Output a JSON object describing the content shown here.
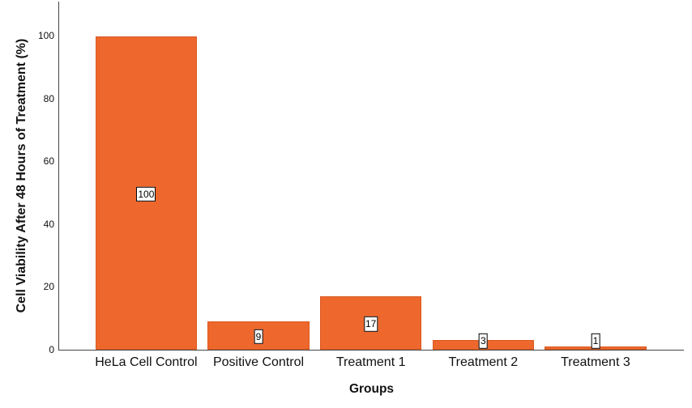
{
  "chart_data": {
    "type": "bar",
    "title": "",
    "categories": [
      "HeLa Cell Control",
      "Positive Control",
      "Treatment 1",
      "Treatment 2",
      "Treatment 3"
    ],
    "values": [
      100,
      9,
      17,
      3,
      1
    ],
    "bar_labels": [
      "100",
      "9",
      "17",
      "3",
      "1"
    ],
    "xlabel": "Groups",
    "ylabel": "Cell Viability After 48 Hours of Treatment (%)",
    "yticks": [
      0,
      20,
      40,
      60,
      80,
      100
    ],
    "ylim": [
      0,
      111
    ],
    "grid": false,
    "legend_position": "none",
    "bar_color": "#ee672c",
    "bar_border_color": "#da5a20",
    "axis_color": "#464646",
    "background_color": "#ffffff",
    "label_box_background": "#ffffff",
    "label_box_border_color": "#000000"
  }
}
